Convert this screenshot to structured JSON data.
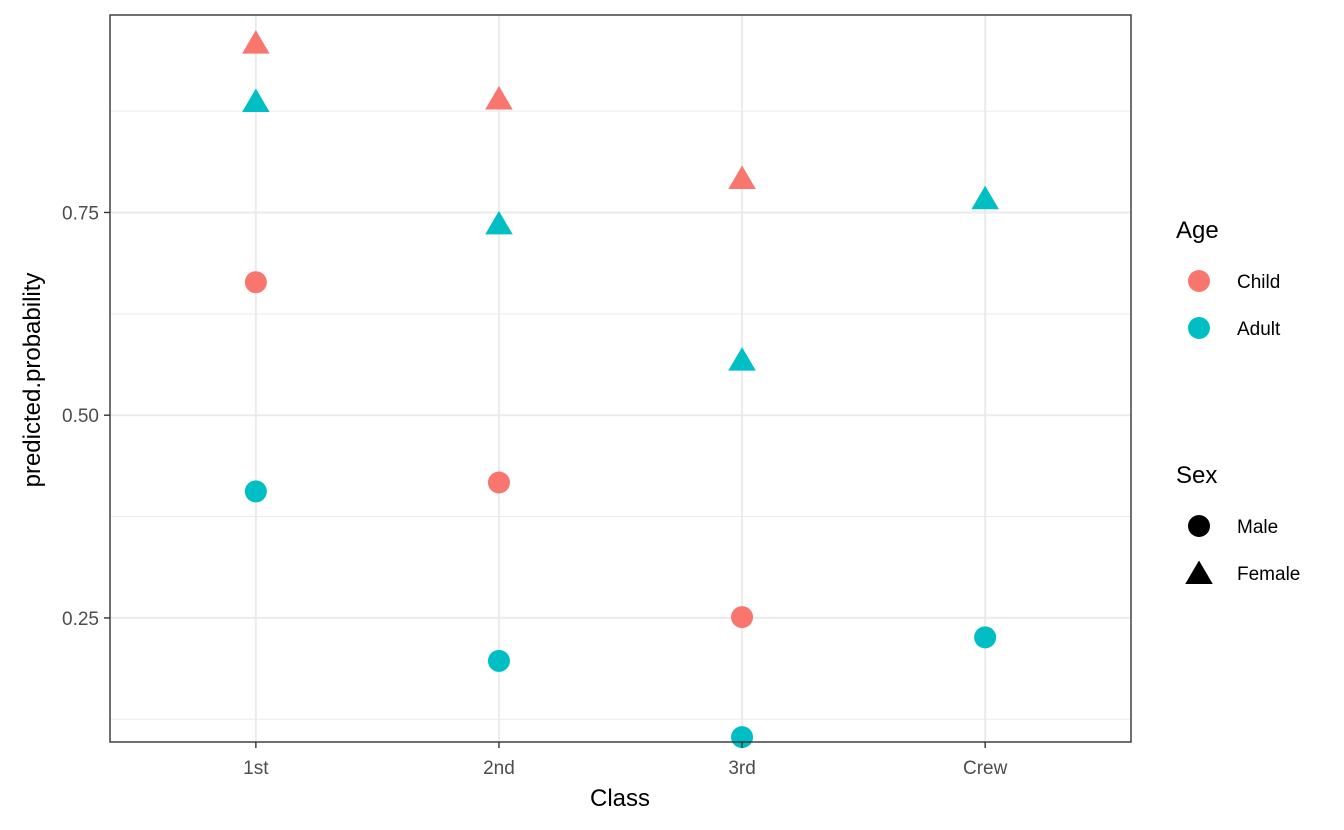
{
  "chart_data": {
    "type": "scatter",
    "xlabel": "Class",
    "ylabel": "predicted.probability",
    "categories": [
      "1st",
      "2nd",
      "3rd",
      "Crew"
    ],
    "ylim": [
      0.1,
      0.975
    ],
    "yticks": [
      0.25,
      0.5,
      0.75
    ],
    "ytick_labels": [
      "0.25",
      "0.50",
      "0.75"
    ],
    "y_minor_gridlines": [
      0.125,
      0.375,
      0.625,
      0.875
    ],
    "grid": true,
    "legend_position": "right",
    "colors": {
      "Child": "#F8766D",
      "Adult": "#00BFC4"
    },
    "shapes": {
      "Male": "circle",
      "Female": "triangle"
    },
    "points": [
      {
        "x": "1st",
        "y": 0.957,
        "Age": "Child",
        "Sex": "Female"
      },
      {
        "x": "1st",
        "y": 0.885,
        "Age": "Adult",
        "Sex": "Female"
      },
      {
        "x": "1st",
        "y": 0.664,
        "Age": "Child",
        "Sex": "Male"
      },
      {
        "x": "1st",
        "y": 0.406,
        "Age": "Adult",
        "Sex": "Male"
      },
      {
        "x": "2nd",
        "y": 0.888,
        "Age": "Child",
        "Sex": "Female"
      },
      {
        "x": "2nd",
        "y": 0.734,
        "Age": "Adult",
        "Sex": "Female"
      },
      {
        "x": "2nd",
        "y": 0.417,
        "Age": "Child",
        "Sex": "Male"
      },
      {
        "x": "2nd",
        "y": 0.197,
        "Age": "Adult",
        "Sex": "Male"
      },
      {
        "x": "3rd",
        "y": 0.79,
        "Age": "Child",
        "Sex": "Female"
      },
      {
        "x": "3rd",
        "y": 0.566,
        "Age": "Adult",
        "Sex": "Female"
      },
      {
        "x": "3rd",
        "y": 0.251,
        "Age": "Child",
        "Sex": "Male"
      },
      {
        "x": "3rd",
        "y": 0.103,
        "Age": "Adult",
        "Sex": "Male"
      },
      {
        "x": "Crew",
        "y": 0.765,
        "Age": "Adult",
        "Sex": "Female"
      },
      {
        "x": "Crew",
        "y": 0.226,
        "Age": "Adult",
        "Sex": "Male"
      }
    ],
    "legends": [
      {
        "title": "Age",
        "items": [
          {
            "label": "Child",
            "color": "#F8766D",
            "shape": "circle"
          },
          {
            "label": "Adult",
            "color": "#00BFC4",
            "shape": "circle"
          }
        ]
      },
      {
        "title": "Sex",
        "items": [
          {
            "label": "Male",
            "color": "#000000",
            "shape": "circle"
          },
          {
            "label": "Female",
            "color": "#000000",
            "shape": "triangle"
          }
        ]
      }
    ]
  }
}
